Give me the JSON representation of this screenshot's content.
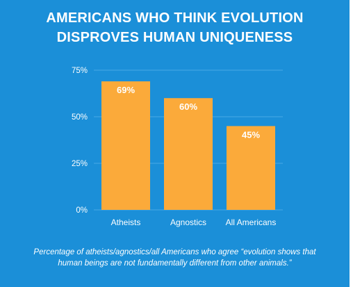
{
  "colors": {
    "background": "#1b8fd8",
    "bar": "#fbaa3a",
    "text": "#ffffff",
    "gridline": "#4aa8e6"
  },
  "title": {
    "line1": "AMERICANS WHO THINK EVOLUTION",
    "line2": "DISPROVES HUMAN UNIQUENESS"
  },
  "chart_data": {
    "type": "bar",
    "categories": [
      "Atheists",
      "Agnostics",
      "All Americans"
    ],
    "values": [
      69,
      60,
      45
    ],
    "value_labels": [
      "69%",
      "60%",
      "45%"
    ],
    "yticks": [
      0,
      25,
      50,
      75
    ],
    "ytick_labels": [
      "0%",
      "25%",
      "50%",
      "75%"
    ],
    "ylim": [
      0,
      75
    ],
    "grid": true
  },
  "footnote": {
    "line1": "Percentage of atheists/agnostics/all Americans who agree “evolution shows that",
    "line2": "human beings are not fundamentally different from other animals.”"
  }
}
